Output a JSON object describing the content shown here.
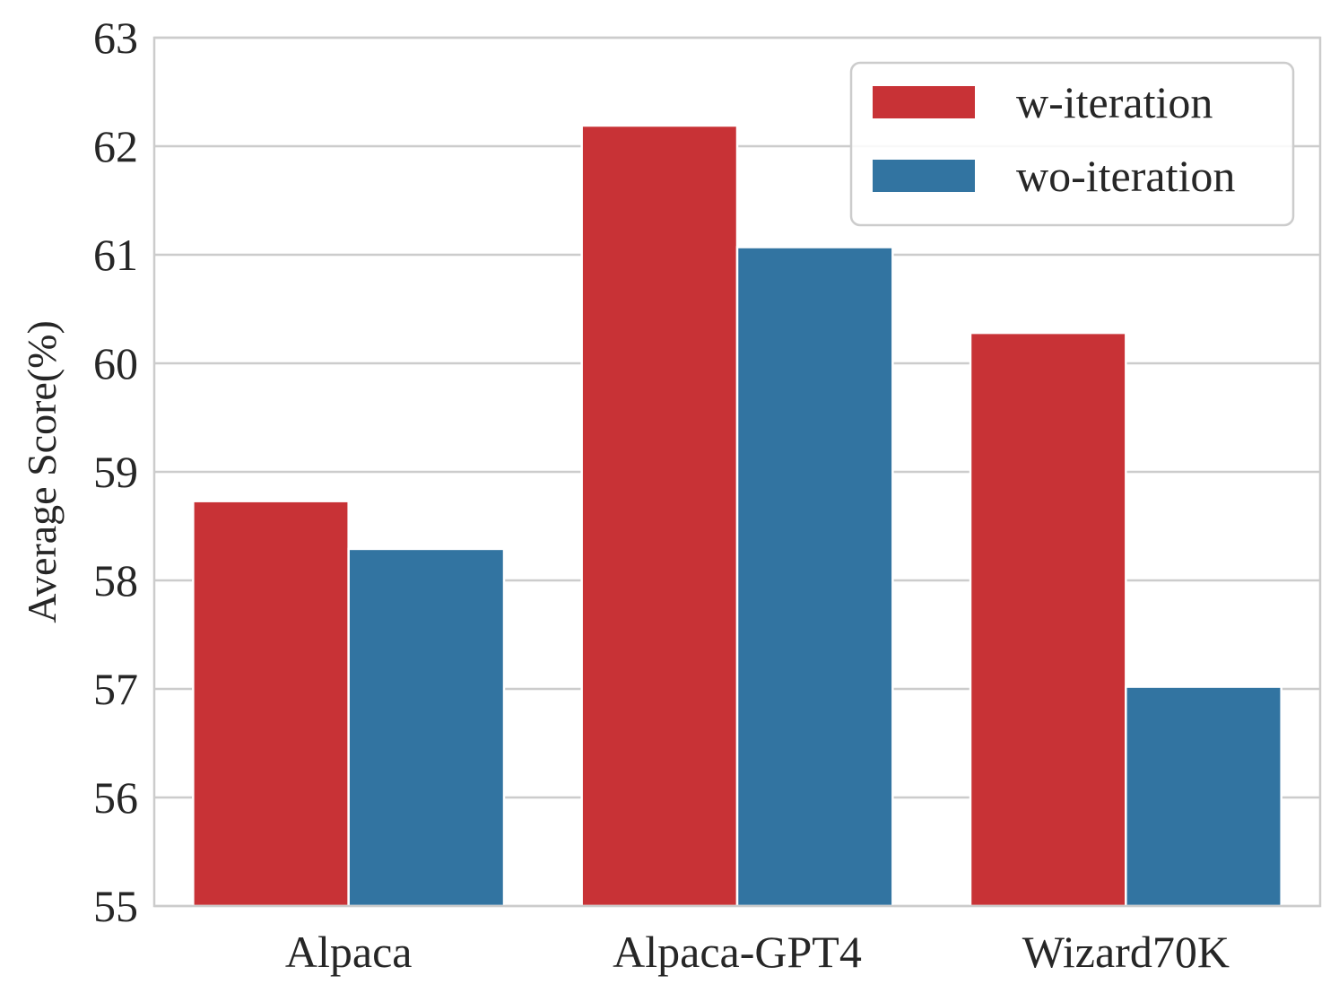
{
  "chart_data": {
    "type": "bar",
    "categories": [
      "Alpaca",
      "Alpaca-GPT4",
      "Wizard70K"
    ],
    "series": [
      {
        "name": "w-iteration",
        "color": "#c83236",
        "values": [
          58.73,
          62.19,
          60.28
        ]
      },
      {
        "name": "wo-iteration",
        "color": "#3274a1",
        "values": [
          58.29,
          61.07,
          57.02
        ]
      }
    ],
    "xlabel": "",
    "ylabel": "Average Score(%)",
    "ylim": [
      55,
      63
    ],
    "yticks": [
      "55",
      "56",
      "57",
      "58",
      "59",
      "60",
      "61",
      "62",
      "63"
    ],
    "grid": true,
    "legend_position": "top-right"
  }
}
